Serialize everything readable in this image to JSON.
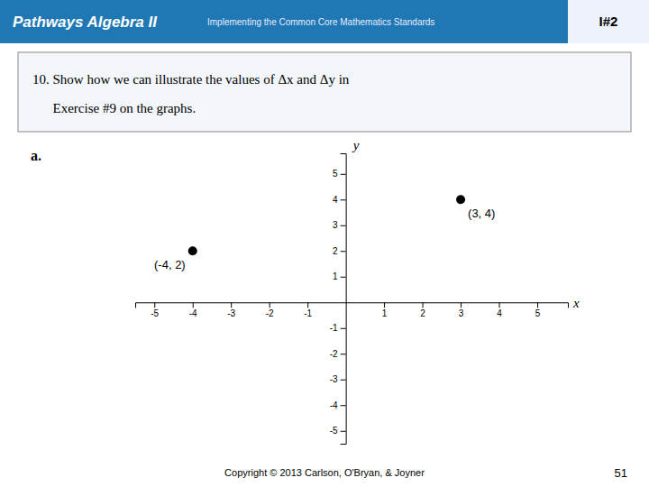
{
  "chart_data": {
    "type": "scatter",
    "title": "Pathways Algebra II",
    "subtitle": "Implementing the Common Core Mathematics Standards",
    "annotations": [
      "I#2",
      "10. Show how we can illustrate the values of Δx and Δy in",
      "      Exercise #9 on the graphs.",
      "a.",
      "Copyright © 2013 Carlson, O'Bryan, & Joyner",
      "51"
    ],
    "xlabel": "x",
    "ylabel": "y",
    "x": [
      -4,
      3
    ],
    "values": [
      2,
      4
    ],
    "value_labels": [
      "(-4, 2)",
      "(3, 4)"
    ],
    "color": "#000000",
    "xlim": [
      -5.5,
      5.8
    ],
    "ylim": [
      -5.5,
      5.8
    ],
    "xticks": [
      -5,
      -4,
      -3,
      -2,
      -1,
      1,
      2,
      3,
      4,
      5
    ],
    "yticks": [
      -5,
      -4,
      -3,
      -2,
      -1,
      1,
      2,
      3,
      4,
      5
    ],
    "grid": false
  }
}
